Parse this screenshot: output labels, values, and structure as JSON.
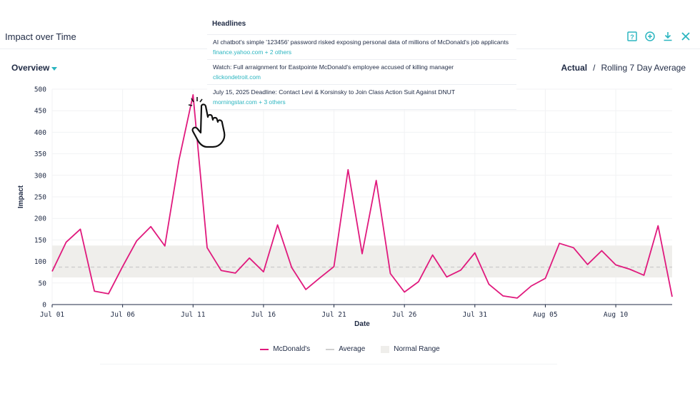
{
  "header": {
    "title": "Impact over Time"
  },
  "toolbar": {
    "icons": [
      "help-icon",
      "add-circle-icon",
      "download-icon",
      "close-icon"
    ],
    "accent": "#2bb5c0"
  },
  "controls": {
    "overview_label": "Overview",
    "mode_actual": "Actual",
    "mode_separator": "/",
    "mode_rolling": "Rolling 7 Day Average"
  },
  "headlines": {
    "title": "Headlines",
    "items": [
      {
        "text": "AI chatbot's simple '123456' password risked exposing personal data of millions of McDonald's job applicants",
        "source": "finance.yahoo.com + 2 others"
      },
      {
        "text": "Watch: Full arraignment for Eastpointe McDonald's employee accused of killing manager",
        "source": "clickondetroit.com"
      },
      {
        "text": "July 15, 2025 Deadline: Contact Levi & Korsinsky to Join Class Action Suit Against DNUT",
        "source": "morningstar.com + 3 others"
      }
    ]
  },
  "chart_data": {
    "type": "line",
    "xlabel": "Date",
    "ylabel": "Impact",
    "ylim": [
      0,
      500
    ],
    "yticks": [
      0,
      50,
      100,
      150,
      200,
      250,
      300,
      350,
      400,
      450,
      500
    ],
    "xtick_labels": [
      "Jul 01",
      "Jul 06",
      "Jul 11",
      "Jul 16",
      "Jul 21",
      "Jul 26",
      "Jul 31",
      "Aug 05",
      "Aug 10"
    ],
    "x_start": "Jul 01",
    "x_end": "Aug 14",
    "grid": true,
    "series": [
      {
        "name": "McDonald's",
        "color": "#e0197d",
        "values": [
          77,
          145,
          175,
          31,
          25,
          88,
          148,
          181,
          136,
          335,
          487,
          132,
          79,
          73,
          108,
          76,
          185,
          86,
          35,
          62,
          88,
          313,
          118,
          288,
          72,
          29,
          53,
          115,
          64,
          80,
          120,
          47,
          20,
          15,
          43,
          61,
          142,
          132,
          93,
          125,
          92,
          82,
          68,
          183,
          18
        ]
      }
    ],
    "average": 87,
    "normal_range": [
      63,
      137
    ],
    "legend": [
      "McDonald's",
      "Average",
      "Normal Range"
    ],
    "legend_position": "bottom-center"
  }
}
